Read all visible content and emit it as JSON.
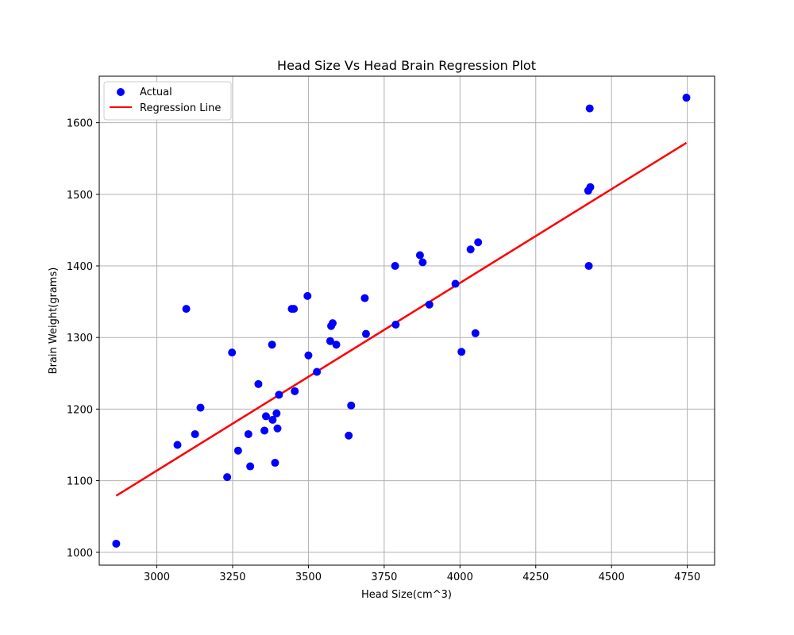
{
  "chart_data": {
    "type": "scatter",
    "title": "Head Size Vs Head Brain Regression Plot",
    "xlabel": "Head Size(cm^3)",
    "ylabel": "Brain Weight(grams)",
    "xlim": [
      2810,
      4840
    ],
    "ylim": [
      982,
      1665
    ],
    "xticks": [
      3000,
      3250,
      3500,
      3750,
      4000,
      4250,
      4500,
      4750
    ],
    "yticks": [
      1000,
      1100,
      1200,
      1300,
      1400,
      1500,
      1600
    ],
    "grid": true,
    "legend_position": "top-left",
    "series": [
      {
        "name": "Actual",
        "kind": "scatter",
        "color": "#0000ff",
        "points": [
          [
            2866,
            1012
          ],
          [
            3068,
            1150
          ],
          [
            3097,
            1340
          ],
          [
            3126,
            1165
          ],
          [
            3144,
            1202
          ],
          [
            3232,
            1105
          ],
          [
            3248,
            1279
          ],
          [
            3268,
            1142
          ],
          [
            3302,
            1165
          ],
          [
            3308,
            1120
          ],
          [
            3335,
            1235
          ],
          [
            3355,
            1170
          ],
          [
            3360,
            1190
          ],
          [
            3380,
            1290
          ],
          [
            3382,
            1185
          ],
          [
            3390,
            1125
          ],
          [
            3395,
            1194
          ],
          [
            3398,
            1173
          ],
          [
            3403,
            1220
          ],
          [
            3445,
            1340
          ],
          [
            3452,
            1340
          ],
          [
            3455,
            1225
          ],
          [
            3497,
            1358
          ],
          [
            3500,
            1275
          ],
          [
            3528,
            1252
          ],
          [
            3572,
            1295
          ],
          [
            3575,
            1316
          ],
          [
            3580,
            1320
          ],
          [
            3592,
            1290
          ],
          [
            3633,
            1163
          ],
          [
            3641,
            1205
          ],
          [
            3686,
            1355
          ],
          [
            3690,
            1305
          ],
          [
            3786,
            1400
          ],
          [
            3788,
            1318
          ],
          [
            3868,
            1415
          ],
          [
            3877,
            1405
          ],
          [
            3899,
            1346
          ],
          [
            3985,
            1375
          ],
          [
            4005,
            1280
          ],
          [
            4035,
            1423
          ],
          [
            4051,
            1306
          ],
          [
            4060,
            1433
          ],
          [
            4423,
            1505
          ],
          [
            4425,
            1400
          ],
          [
            4428,
            1620
          ],
          [
            4430,
            1510
          ],
          [
            4747,
            1635
          ]
        ]
      },
      {
        "name": "Regression Line",
        "kind": "line",
        "color": "#ff0000",
        "points": [
          [
            2866,
            1079
          ],
          [
            4747,
            1572
          ]
        ]
      }
    ]
  }
}
